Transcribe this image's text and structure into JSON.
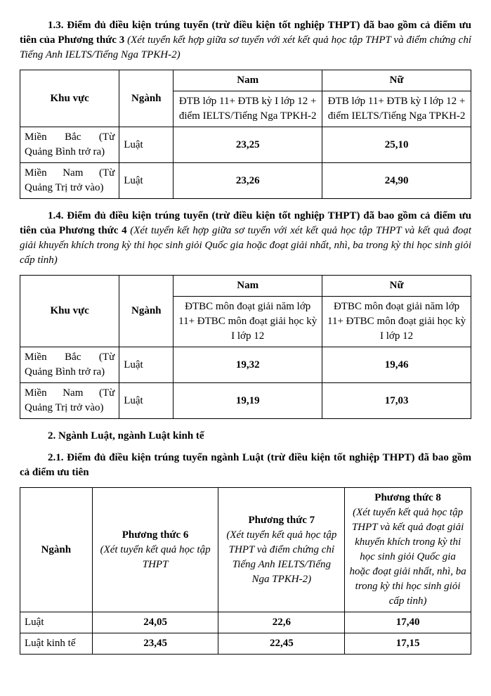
{
  "section13": {
    "heading_bold": "1.3. Điểm đủ điều kiện trúng tuyển (trừ điều kiện tốt nghiệp THPT) đã bao gồm cả điểm ưu tiên của Phương thức 3",
    "heading_italic": " (Xét tuyển kết hợp giữa sơ tuyển với xét kết quả học tập THPT và điểm chứng chỉ Tiếng Anh IELTS/Tiếng Nga TPKH-2)"
  },
  "table1": {
    "headers": {
      "khuvuc": "Khu vực",
      "nganh": "Ngành",
      "nam": "Nam",
      "nu": "Nữ",
      "sub_nam": "ĐTB lớp 11+ ĐTB kỳ I lớp 12 + điểm IELTS/Tiếng Nga TPKH-2",
      "sub_nu": "ĐTB lớp 11+ ĐTB kỳ I lớp 12 + điểm IELTS/Tiếng Nga TPKH-2"
    },
    "rows": [
      {
        "khuvuc_line1": "Miền Bắc (Từ",
        "khuvuc_line2": "Quảng Bình trở ra)",
        "nganh": "Luật",
        "nam": "23,25",
        "nu": "25,10"
      },
      {
        "khuvuc_line1": "Miền Nam (Từ",
        "khuvuc_line2": "Quảng Trị trở vào)",
        "nganh": "Luật",
        "nam": "23,26",
        "nu": "24,90"
      }
    ]
  },
  "section14": {
    "heading_bold": "1.4. Điểm đủ điều kiện trúng tuyển (trừ điều kiện tốt nghiệp THPT) đã bao gồm cả điểm ưu tiên của Phương thức 4",
    "heading_italic": " (Xét tuyển kết hợp giữa sơ tuyển với xét kết quả học tập THPT và kết quả đoạt giải khuyến khích trong kỳ thi học sinh giỏi Quốc gia hoặc đoạt giải nhất, nhì, ba trong kỳ thi học sinh giỏi cấp tỉnh)"
  },
  "table2": {
    "headers": {
      "khuvuc": "Khu vực",
      "nganh": "Ngành",
      "nam": "Nam",
      "nu": "Nữ",
      "sub_nam": "ĐTBC môn đoạt giải năm lớp 11+ ĐTBC môn đoạt giải học kỳ I lớp 12",
      "sub_nu": "ĐTBC môn đoạt giải năm lớp 11+ ĐTBC môn đoạt giải học kỳ I lớp 12"
    },
    "rows": [
      {
        "khuvuc_line1": "Miền Bắc (Từ",
        "khuvuc_line2": "Quảng Bình trở ra)",
        "nganh": "Luật",
        "nam": "19,32",
        "nu": "19,46"
      },
      {
        "khuvuc_line1": "Miền Nam (Từ",
        "khuvuc_line2": "Quảng Trị trở vào)",
        "nganh": "Luật",
        "nam": "19,19",
        "nu": "17,03"
      }
    ]
  },
  "section2": {
    "title": "2. Ngành Luật, ngành Luật kinh tế",
    "sub": "2.1. Điểm đủ điều kiện trúng tuyển ngành Luật (trừ điều kiện tốt nghiệp THPT) đã bao gồm cả điểm ưu tiên"
  },
  "table3": {
    "headers": {
      "nganh": "Ngành",
      "pt6_title": "Phương thức 6",
      "pt6_desc": "(Xét tuyển kết quả học tập THPT",
      "pt7_title": "Phương thức 7",
      "pt7_desc": "(Xét tuyển kết quả học tập THPT và điểm chứng chỉ Tiếng Anh IELTS/Tiếng Nga TPKH-2)",
      "pt8_title": "Phương thức 8",
      "pt8_desc": "(Xét tuyển kết quả học tập THPT và kết quả đoạt giải khuyến khích trong kỳ thi học sinh giỏi Quốc gia hoặc đoạt giải nhất, nhì, ba trong kỳ thi học sinh giỏi cấp tỉnh)"
    },
    "rows": [
      {
        "nganh": "Luật",
        "pt6": "24,05",
        "pt7": "22,6",
        "pt8": "17,40"
      },
      {
        "nganh": "Luật kinh tế",
        "pt6": "23,45",
        "pt7": "22,45",
        "pt8": "17,15"
      }
    ]
  }
}
